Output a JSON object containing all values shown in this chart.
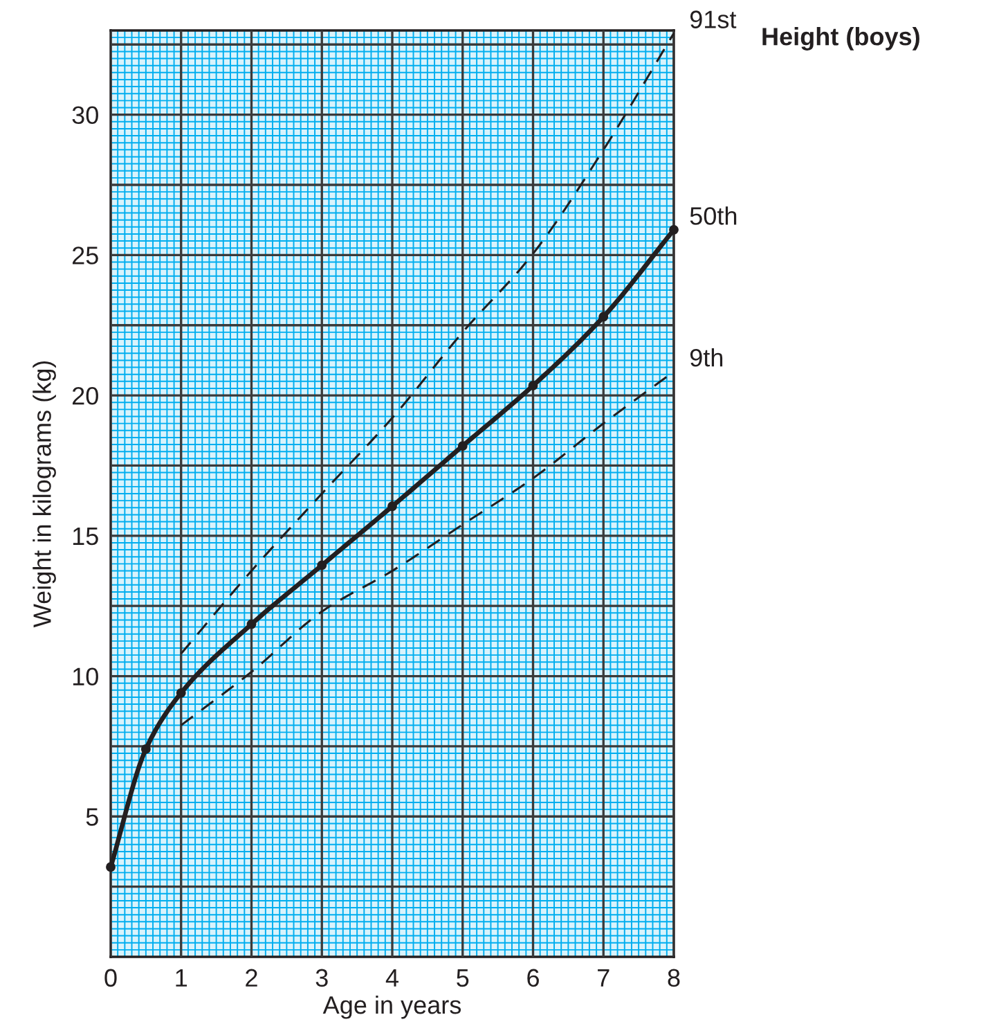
{
  "chart_data": {
    "type": "line",
    "title": "Height (boys)",
    "xlabel": "Age in years",
    "ylabel": "Weight in kilograms (kg)",
    "xlim": [
      0,
      8
    ],
    "xticks": [
      0,
      1,
      2,
      3,
      4,
      5,
      6,
      7,
      8
    ],
    "ylim": [
      0,
      33
    ],
    "yticks": [
      {
        "value": 2.5,
        "label": null
      },
      5,
      {
        "value": 7.5,
        "label": null
      },
      10,
      {
        "value": 12.5,
        "label": null
      },
      15,
      {
        "value": 17.5,
        "label": null
      },
      20,
      {
        "value": 22.5,
        "label": null
      },
      25,
      {
        "value": 27.5,
        "label": null
      },
      30,
      {
        "value": 32.5,
        "label": null
      }
    ],
    "grid": true,
    "series": [
      {
        "name": "91st",
        "color": "#231f20",
        "line_style": "dashed",
        "marker": "none",
        "x": [
          1,
          2,
          3,
          4,
          5,
          6,
          7,
          8
        ],
        "values": [
          10.8,
          13.75,
          16.5,
          19.2,
          22.25,
          25.05,
          28.75,
          32.9
        ]
      },
      {
        "name": "50th",
        "color": "#231f20",
        "line_style": "solid",
        "marker": "circle",
        "x": [
          0,
          0.5,
          1,
          2,
          3,
          4,
          5,
          6,
          7,
          8
        ],
        "values": [
          3.2,
          7.4,
          9.4,
          11.85,
          13.95,
          16.05,
          18.2,
          20.35,
          22.8,
          25.9
        ]
      },
      {
        "name": "9th",
        "color": "#231f20",
        "line_style": "dashed",
        "marker": "none",
        "x": [
          1,
          2,
          3,
          4,
          5,
          6,
          7,
          8
        ],
        "values": [
          8.25,
          10.15,
          12.3,
          13.75,
          15.4,
          17.05,
          19.0,
          20.85
        ]
      }
    ]
  }
}
